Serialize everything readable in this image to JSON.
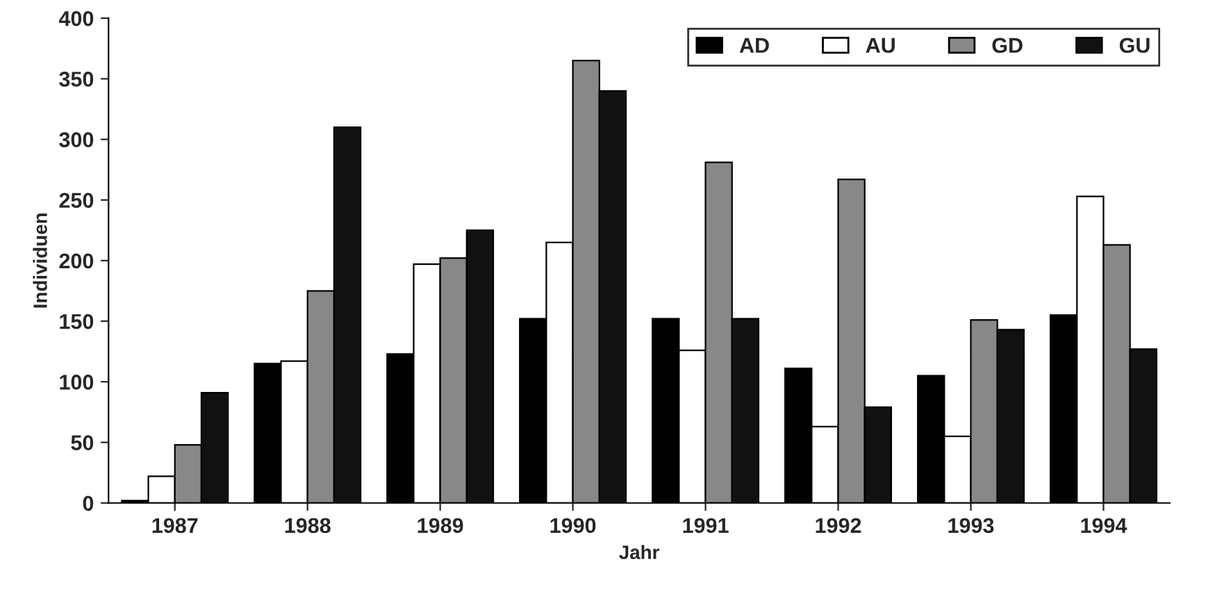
{
  "chart_data": {
    "type": "bar",
    "xlabel": "Jahr",
    "ylabel": "Individuen",
    "categories": [
      "1987",
      "1988",
      "1989",
      "1990",
      "1991",
      "1992",
      "1993",
      "1994"
    ],
    "series": [
      {
        "name": "AD",
        "color": "#000000",
        "values": [
          2,
          115,
          123,
          152,
          152,
          111,
          105,
          155
        ]
      },
      {
        "name": "AU",
        "color": "#ffffff",
        "values": [
          22,
          117,
          197,
          215,
          126,
          63,
          55,
          253
        ]
      },
      {
        "name": "GD",
        "color": "#888888",
        "values": [
          48,
          175,
          202,
          365,
          281,
          267,
          151,
          213
        ]
      },
      {
        "name": "GU",
        "color": "#111111",
        "values": [
          91,
          310,
          225,
          340,
          152,
          79,
          143,
          127
        ]
      }
    ],
    "ylim": [
      0,
      400
    ],
    "yticks": [
      0,
      50,
      100,
      150,
      200,
      250,
      300,
      350,
      400
    ],
    "grid": false,
    "legend": "top right"
  }
}
